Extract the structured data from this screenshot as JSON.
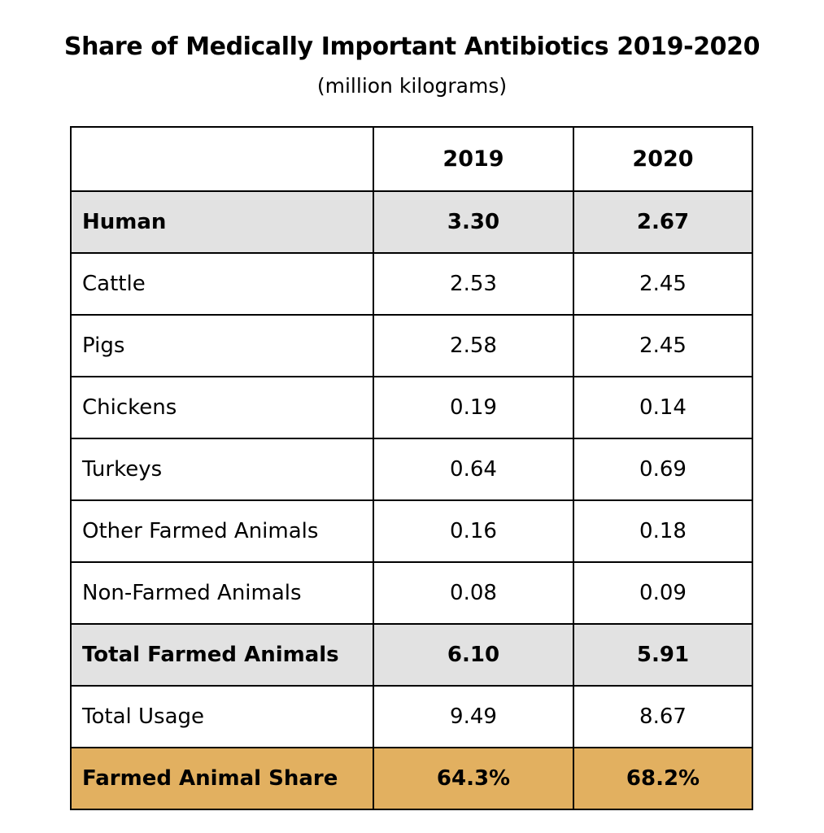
{
  "chart_data": {
    "type": "table",
    "title": "Share of Medically Important Antibiotics 2019-2020",
    "subtitle": "(million kilograms)",
    "columns": [
      "",
      "2019",
      "2020"
    ],
    "rows": [
      {
        "label": "Human",
        "v2019": "3.30",
        "v2020": "2.67",
        "bold": true,
        "highlight": "grey"
      },
      {
        "label": "Cattle",
        "v2019": "2.53",
        "v2020": "2.45",
        "bold": false,
        "highlight": "none"
      },
      {
        "label": "Pigs",
        "v2019": "2.58",
        "v2020": "2.45",
        "bold": false,
        "highlight": "none"
      },
      {
        "label": "Chickens",
        "v2019": "0.19",
        "v2020": "0.14",
        "bold": false,
        "highlight": "none"
      },
      {
        "label": "Turkeys",
        "v2019": "0.64",
        "v2020": "0.69",
        "bold": false,
        "highlight": "none"
      },
      {
        "label": "Other Farmed Animals",
        "v2019": "0.16",
        "v2020": "0.18",
        "bold": false,
        "highlight": "none"
      },
      {
        "label": "Non-Farmed Animals",
        "v2019": "0.08",
        "v2020": "0.09",
        "bold": false,
        "highlight": "none"
      },
      {
        "label": "Total Farmed Animals",
        "v2019": "6.10",
        "v2020": "5.91",
        "bold": true,
        "highlight": "grey"
      },
      {
        "label": "Total Usage",
        "v2019": "9.49",
        "v2020": "8.67",
        "bold": false,
        "highlight": "none"
      },
      {
        "label": "Farmed Animal Share",
        "v2019": "64.3%",
        "v2020": "68.2%",
        "bold": true,
        "highlight": "gold"
      }
    ],
    "colors": {
      "grey_highlight": "#e2e2e2",
      "gold_highlight": "#e2b060",
      "border": "#000000"
    }
  }
}
